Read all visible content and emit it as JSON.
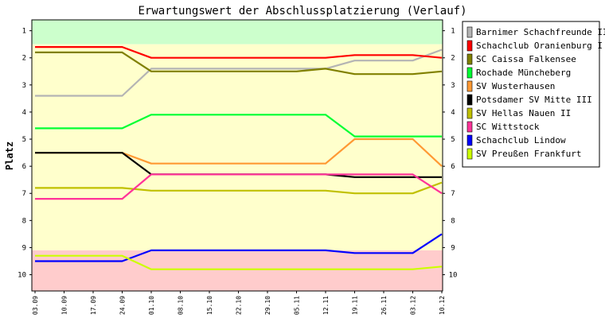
{
  "chart_data": {
    "type": "line",
    "title": "Erwartungswert der Abschlussplatzierung (Verlauf)",
    "ylabel": "Platz",
    "xlabel": "",
    "ylim": [
      0.6,
      10.6
    ],
    "y_ticks": [
      "1",
      "2",
      "3",
      "4",
      "5",
      "6",
      "7",
      "8",
      "9",
      "10"
    ],
    "y_inverted": true,
    "x": [
      "03.09",
      "10.09",
      "17.09",
      "24.09",
      "01.10",
      "08.10",
      "15.10",
      "22.10",
      "29.10",
      "05.11",
      "12.11",
      "19.11",
      "26.11",
      "03.12",
      "10.12"
    ],
    "bands": [
      {
        "from": 0.6,
        "to": 1.5,
        "color": "#ccffcc"
      },
      {
        "from": 1.5,
        "to": 9.1,
        "color": "#ffffcc"
      },
      {
        "from": 9.1,
        "to": 10.6,
        "color": "#ffcccc"
      }
    ],
    "legend_position": "right",
    "series": [
      {
        "name": "Barnimer Schachfreunde II",
        "color": "#b4b4b4",
        "values": [
          3.4,
          3.4,
          3.4,
          3.4,
          2.4,
          2.4,
          2.4,
          2.4,
          2.4,
          2.4,
          2.4,
          2.1,
          2.1,
          2.1,
          1.7
        ]
      },
      {
        "name": "Schachclub Oranienburg I",
        "color": "#ff0000",
        "values": [
          1.6,
          1.6,
          1.6,
          1.6,
          2.0,
          2.0,
          2.0,
          2.0,
          2.0,
          2.0,
          2.0,
          1.9,
          1.9,
          1.9,
          2.0
        ]
      },
      {
        "name": "SC Caissa Falkensee",
        "color": "#808000",
        "values": [
          1.8,
          1.8,
          1.8,
          1.8,
          2.5,
          2.5,
          2.5,
          2.5,
          2.5,
          2.5,
          2.4,
          2.6,
          2.6,
          2.6,
          2.5
        ]
      },
      {
        "name": "Rochade Müncheberg",
        "color": "#00ff33",
        "values": [
          4.6,
          4.6,
          4.6,
          4.6,
          4.1,
          4.1,
          4.1,
          4.1,
          4.1,
          4.1,
          4.1,
          4.9,
          4.9,
          4.9,
          4.9
        ]
      },
      {
        "name": "SV Wusterhausen",
        "color": "#ff9933",
        "values": [
          5.5,
          5.5,
          5.5,
          5.5,
          5.9,
          5.9,
          5.9,
          5.9,
          5.9,
          5.9,
          5.9,
          5.0,
          5.0,
          5.0,
          6.0
        ]
      },
      {
        "name": "Potsdamer SV Mitte III",
        "color": "#000000",
        "values": [
          5.5,
          5.5,
          5.5,
          5.5,
          6.3,
          6.3,
          6.3,
          6.3,
          6.3,
          6.3,
          6.3,
          6.4,
          6.4,
          6.4,
          6.4
        ]
      },
      {
        "name": "SV Hellas Nauen II",
        "color": "#c0c000",
        "values": [
          6.8,
          6.8,
          6.8,
          6.8,
          6.9,
          6.9,
          6.9,
          6.9,
          6.9,
          6.9,
          6.9,
          7.0,
          7.0,
          7.0,
          6.6
        ]
      },
      {
        "name": "SC Wittstock",
        "color": "#ff3399",
        "values": [
          7.2,
          7.2,
          7.2,
          7.2,
          6.3,
          6.3,
          6.3,
          6.3,
          6.3,
          6.3,
          6.3,
          6.3,
          6.3,
          6.3,
          7.0
        ]
      },
      {
        "name": "Schachclub Lindow",
        "color": "#0000ff",
        "values": [
          9.5,
          9.5,
          9.5,
          9.5,
          9.1,
          9.1,
          9.1,
          9.1,
          9.1,
          9.1,
          9.1,
          9.2,
          9.2,
          9.2,
          8.5
        ]
      },
      {
        "name": "SV Preußen Frankfurt",
        "color": "#ccff00",
        "values": [
          9.3,
          9.3,
          9.3,
          9.3,
          9.8,
          9.8,
          9.8,
          9.8,
          9.8,
          9.8,
          9.8,
          9.8,
          9.8,
          9.8,
          9.7
        ]
      }
    ]
  }
}
